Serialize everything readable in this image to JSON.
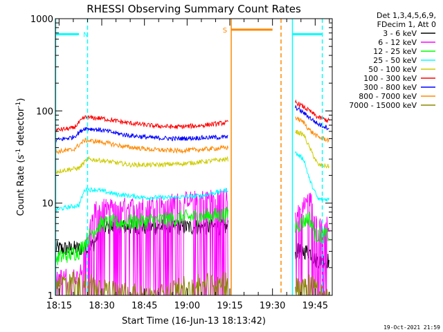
{
  "chart_data": {
    "type": "line",
    "title": "RHESSI Observing Summary Count Rates",
    "xlabel": "Start Time (16-Jun-13 18:13:42)",
    "ylabel_main": "Count Rate (s",
    "ylabel_sup1": "-1",
    "ylabel_mid": " detector",
    "ylabel_sup2": "-1",
    "ylabel_end": ")",
    "y_scale": "log",
    "ylim": [
      1,
      1000
    ],
    "xlim_min": [
      13.7,
      111
    ],
    "x_ticks": [
      {
        "label": "18:15",
        "min": 15
      },
      {
        "label": "18:30",
        "min": 30
      },
      {
        "label": "18:45",
        "min": 45
      },
      {
        "label": "19:00",
        "min": 60
      },
      {
        "label": "19:15",
        "min": 75
      },
      {
        "label": "19:30",
        "min": 90
      },
      {
        "label": "19:45",
        "min": 105
      }
    ],
    "y_ticks": [
      {
        "label": "1",
        "value": 1
      },
      {
        "label": "10",
        "value": 10
      },
      {
        "label": "100",
        "value": 100
      },
      {
        "label": "1000",
        "value": 1000
      }
    ],
    "legend": {
      "placement": "right",
      "header": [
        "Det 1,3,4,5,6,9,",
        "FDecim 1, Att 0"
      ]
    },
    "series": [
      {
        "name": "3 - 6 keV",
        "color": "#000000",
        "segments": [
          [
            [
              13.8,
              3.2
            ],
            [
              22,
              3.2
            ],
            [
              27,
              3.5
            ],
            [
              30,
              5.5
            ],
            [
              45,
              5.5
            ],
            [
              60,
              5.5
            ],
            [
              74.5,
              5.5
            ]
          ],
          [
            [
              98,
              3
            ],
            [
              103,
              3
            ],
            [
              105,
              2.4
            ],
            [
              110,
              2.4
            ]
          ]
        ]
      },
      {
        "name": "6 - 12 keV",
        "color": "#ff00ff",
        "segments": [
          [
            [
              13.8,
              1.6
            ],
            [
              22,
              1.6
            ],
            [
              27,
              8
            ],
            [
              29,
              9
            ],
            [
              40,
              9.5
            ],
            [
              50,
              10
            ],
            [
              60,
              11
            ],
            [
              74.5,
              12
            ]
          ],
          [
            [
              98,
              7
            ],
            [
              102,
              11
            ],
            [
              104,
              11
            ],
            [
              105,
              6
            ],
            [
              110,
              6
            ]
          ]
        ]
      },
      {
        "name": "12 - 25 keV",
        "color": "#00ff00",
        "segments": [
          [
            [
              13.8,
              2.5
            ],
            [
              22,
              3
            ],
            [
              27,
              5
            ],
            [
              30,
              6
            ],
            [
              40,
              6.2
            ],
            [
              50,
              6.5
            ],
            [
              60,
              7
            ],
            [
              74.5,
              7.5
            ]
          ],
          [
            [
              98,
              5.5
            ],
            [
              103,
              7
            ],
            [
              105,
              4.5
            ],
            [
              110,
              4.5
            ]
          ]
        ]
      },
      {
        "name": "25 - 50 keV",
        "color": "#00ffff",
        "segments": [
          [
            [
              13.8,
              8.5
            ],
            [
              22,
              9.5
            ],
            [
              24,
              14
            ],
            [
              28,
              14
            ],
            [
              35,
              12.5
            ],
            [
              45,
              11.5
            ],
            [
              55,
              11.5
            ],
            [
              65,
              12
            ],
            [
              74.5,
              14
            ]
          ],
          [
            [
              98,
              35
            ],
            [
              101,
              30
            ],
            [
              103,
              18
            ],
            [
              106,
              11
            ],
            [
              110,
              11
            ]
          ]
        ]
      },
      {
        "name": "50 - 100 keV",
        "color": "#cccc00",
        "segments": [
          [
            [
              13.8,
              22
            ],
            [
              22,
              24
            ],
            [
              25,
              30
            ],
            [
              30,
              29
            ],
            [
              40,
              26
            ],
            [
              50,
              26
            ],
            [
              60,
              27
            ],
            [
              74.5,
              30
            ]
          ],
          [
            [
              98,
              60
            ],
            [
              101,
              55
            ],
            [
              103,
              40
            ],
            [
              106,
              26
            ],
            [
              110,
              25
            ]
          ]
        ]
      },
      {
        "name": "100 - 300 keV",
        "color": "#ff0000",
        "segments": [
          [
            [
              13.8,
              62
            ],
            [
              20,
              65
            ],
            [
              24,
              85
            ],
            [
              30,
              83
            ],
            [
              38,
              75
            ],
            [
              48,
              69
            ],
            [
              56,
              67
            ],
            [
              64,
              69
            ],
            [
              74.5,
              75
            ]
          ],
          [
            [
              98,
              125
            ],
            [
              100,
              115
            ],
            [
              103,
              100
            ],
            [
              106,
              85
            ],
            [
              110,
              78
            ]
          ]
        ]
      },
      {
        "name": "300 - 800 keV",
        "color": "#0000ff",
        "segments": [
          [
            [
              13.8,
              48
            ],
            [
              20,
              52
            ],
            [
              24,
              65
            ],
            [
              30,
              62
            ],
            [
              38,
              55
            ],
            [
              48,
              51
            ],
            [
              56,
              50
            ],
            [
              64,
              51
            ],
            [
              74.5,
              52
            ]
          ],
          [
            [
              98,
              110
            ],
            [
              100,
              100
            ],
            [
              103,
              85
            ],
            [
              106,
              72
            ],
            [
              110,
              65
            ]
          ]
        ]
      },
      {
        "name": "800 - 7000 keV",
        "color": "#ff8800",
        "segments": [
          [
            [
              13.8,
              36
            ],
            [
              20,
              38
            ],
            [
              24,
              48
            ],
            [
              30,
              46
            ],
            [
              38,
              41
            ],
            [
              48,
              38
            ],
            [
              56,
              37
            ],
            [
              64,
              38
            ],
            [
              74.5,
              40
            ]
          ],
          [
            [
              98,
              85
            ],
            [
              101,
              75
            ],
            [
              103,
              62
            ],
            [
              106,
              52
            ],
            [
              110,
              48
            ]
          ]
        ]
      },
      {
        "name": "7000 - 15000 keV",
        "color": "#888800",
        "segments": [
          [
            [
              13.8,
              1.4
            ],
            [
              22,
              1.5
            ],
            [
              27,
              1.4
            ],
            [
              30,
              1.3
            ],
            [
              48,
              1
            ],
            [
              57,
              1.3
            ],
            [
              62,
              1.4
            ],
            [
              74.5,
              1.5
            ]
          ],
          [
            [
              98,
              1.3
            ],
            [
              103,
              1.5
            ],
            [
              106,
              1.2
            ],
            [
              110,
              1.1
            ]
          ]
        ]
      }
    ],
    "flags": [
      {
        "label": "N",
        "color": "#00ffff",
        "bar_min": [
          13.8,
          22
        ],
        "bar_value": 680
      },
      {
        "label": "S",
        "color": "#ff8800",
        "bar_min": [
          75.5,
          90
        ],
        "bar_value": 760
      },
      {
        "label": "",
        "color": "#00ffff",
        "bar_min": [
          97,
          107.5
        ],
        "bar_value": 680
      }
    ],
    "vlines": [
      {
        "min": 13.8,
        "color": "#00ffff",
        "style": "solid"
      },
      {
        "min": 25,
        "color": "#00ffff",
        "style": "dashed"
      },
      {
        "min": 75.5,
        "color": "#ff8800",
        "style": "solid"
      },
      {
        "min": 93,
        "color": "#ff8800",
        "style": "dashed"
      },
      {
        "min": 97,
        "color": "#00ffff",
        "style": "solid"
      },
      {
        "min": 107.5,
        "color": "#00ffff",
        "style": "dashed"
      }
    ],
    "timestamp": "19-Oct-2021 21:59"
  }
}
